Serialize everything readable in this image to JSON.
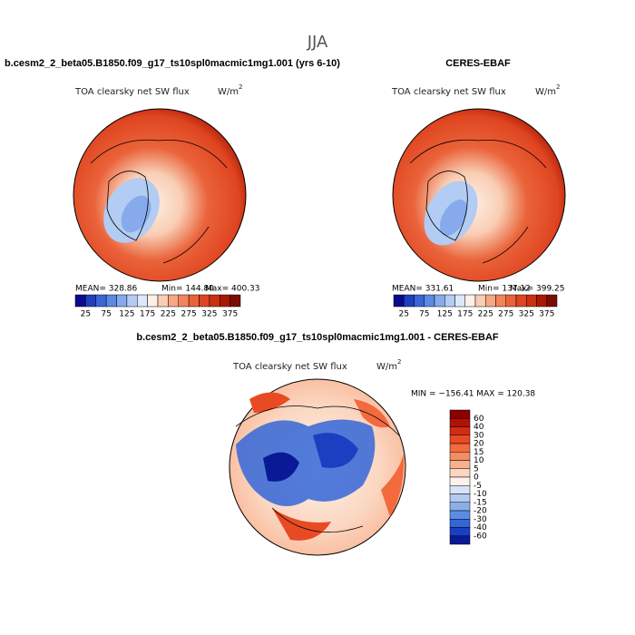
{
  "title": "JJA",
  "panels": [
    {
      "title": "b.cesm2_2_beta05.B1850.f09_g17_ts10spl0macmic1mg1.001 (yrs 6-10)",
      "variable": "TOA clearsky net SW flux",
      "units": "W/m",
      "units_exp": "2",
      "stats": [
        "MEAN= 328.86",
        "Min= 144.80",
        "Max= 400.33"
      ],
      "colorbar": {
        "levels": [
          25,
          75,
          125,
          175,
          225,
          275,
          325,
          375
        ],
        "colors": [
          "#0a0a8c",
          "#1f3fbf",
          "#3a66d6",
          "#5b8ae2",
          "#86aaec",
          "#b2ccf4",
          "#dde8f8",
          "#fdf0e6",
          "#f9ceb4",
          "#f6a884",
          "#f2845c",
          "#ea633a",
          "#df4520",
          "#cc3010",
          "#a91a06",
          "#7a0c02"
        ]
      }
    },
    {
      "title": "CERES-EBAF",
      "variable": "TOA clearsky net SW flux",
      "units": "W/m",
      "units_exp": "2",
      "stats": [
        "MEAN= 331.61",
        "Min= 137.12",
        "Max= 399.25"
      ],
      "colorbar": {
        "levels": [
          25,
          75,
          125,
          175,
          225,
          275,
          325,
          375
        ],
        "colors": [
          "#0a0a8c",
          "#1f3fbf",
          "#3a66d6",
          "#5b8ae2",
          "#86aaec",
          "#b2ccf4",
          "#dde8f8",
          "#fdf0e6",
          "#f9ceb4",
          "#f6a884",
          "#f2845c",
          "#ea633a",
          "#df4520",
          "#cc3010",
          "#a91a06",
          "#7a0c02"
        ]
      }
    },
    {
      "title": "b.cesm2_2_beta05.B1850.f09_g17_ts10spl0macmic1mg1.001 - CERES-EBAF",
      "variable": "TOA clearsky net SW flux",
      "units": "W/m",
      "units_exp": "2",
      "stats": [
        "MIN = −156.41 MAX = 120.38"
      ],
      "colorbar": {
        "levels": [
          60,
          40,
          30,
          20,
          15,
          10,
          5,
          0,
          -5,
          -10,
          -15,
          -20,
          -30,
          -40,
          -60
        ],
        "colors": [
          "#8b0000",
          "#b01208",
          "#d22c14",
          "#e84a24",
          "#f26a3e",
          "#f68c62",
          "#f9b08e",
          "#fbd6c0",
          "#fdf2ea",
          "#d8e4f6",
          "#b2caf0",
          "#8aaeea",
          "#5c8ce2",
          "#3466d8",
          "#1a3fc0",
          "#0a1a96"
        ]
      }
    }
  ]
}
